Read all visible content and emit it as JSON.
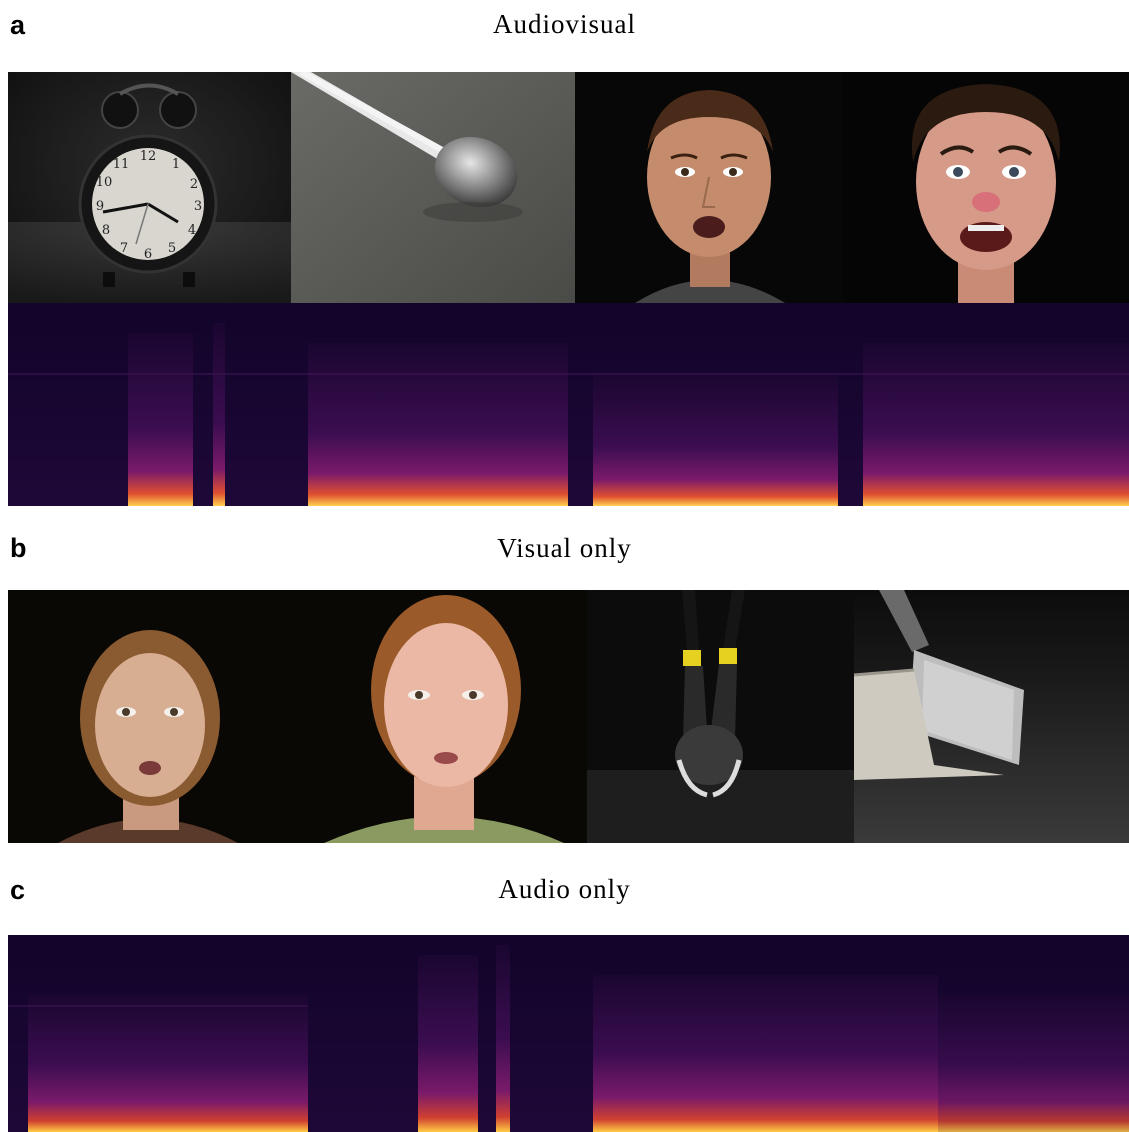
{
  "panels": [
    {
      "letter": "a",
      "title": "Audiovisual"
    },
    {
      "letter": "b",
      "title": "Visual only"
    },
    {
      "letter": "c",
      "title": "Audio only"
    }
  ],
  "images": {
    "audiovisual": [
      "alarm-clock",
      "spoon",
      "man-face",
      "young-man-face"
    ],
    "visual_only": [
      "woman-face",
      "woman-face-2",
      "pincers",
      "brush-dustpan"
    ]
  },
  "colors": {
    "spectrogram_dark": "#1a0630",
    "spectrogram_mid": "#7a1a6a",
    "spectrogram_hot": "#ffcc44"
  }
}
